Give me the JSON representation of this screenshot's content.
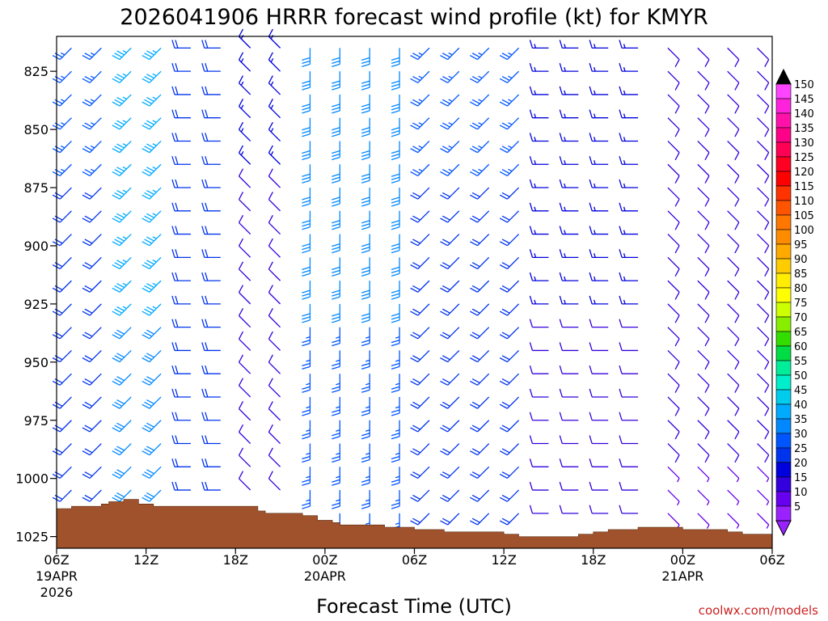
{
  "chart_data": {
    "type": "wind-profile-barbs",
    "title": "2026041906 HRRR forecast wind profile (kt) for KMYR",
    "xlabel": "Forecast Time (UTC)",
    "credit": "coolwx.com/models",
    "units": "kt",
    "x_range_hours": [
      0,
      48
    ],
    "y_range_hpa": [
      1030,
      810
    ],
    "y_ticks": [
      "825",
      "850",
      "875",
      "900",
      "925",
      "950",
      "975",
      "1000",
      "1025"
    ],
    "x_ticks": [
      {
        "hour": 0,
        "label": "06Z",
        "date": "19APR",
        "year": "2026"
      },
      {
        "hour": 6,
        "label": "12Z",
        "date": "",
        "year": ""
      },
      {
        "hour": 12,
        "label": "18Z",
        "date": "",
        "year": ""
      },
      {
        "hour": 18,
        "label": "00Z",
        "date": "20APR",
        "year": ""
      },
      {
        "hour": 24,
        "label": "06Z",
        "date": "",
        "year": ""
      },
      {
        "hour": 30,
        "label": "12Z",
        "date": "",
        "year": ""
      },
      {
        "hour": 36,
        "label": "18Z",
        "date": "",
        "year": ""
      },
      {
        "hour": 42,
        "label": "00Z",
        "date": "21APR",
        "year": ""
      },
      {
        "hour": 48,
        "label": "06Z",
        "date": "",
        "year": ""
      }
    ],
    "colorbar_labels": [
      "150",
      "145",
      "140",
      "135",
      "130",
      "125",
      "120",
      "115",
      "110",
      "105",
      "100",
      "95",
      "90",
      "85",
      "80",
      "75",
      "70",
      "65",
      "60",
      "55",
      "50",
      "45",
      "40",
      "35",
      "30",
      "25",
      "20",
      "15",
      "10",
      "5"
    ],
    "colorbar_colors": [
      "#ff44ff",
      "#ff22dd",
      "#ff11aa",
      "#ff0088",
      "#ff0055",
      "#ff0022",
      "#ff0000",
      "#ff3300",
      "#ff5500",
      "#ff7700",
      "#ff8c00",
      "#ffaa00",
      "#ffcc00",
      "#ffee00",
      "#ffff00",
      "#ccff00",
      "#88ee00",
      "#33dd00",
      "#00dd44",
      "#00ee99",
      "#00eecc",
      "#00ccee",
      "#00aaff",
      "#0088ff",
      "#0055ff",
      "#0033ee",
      "#0000dd",
      "#3300dd",
      "#6600ee",
      "#9922ff"
    ],
    "barb_levels_hpa": [
      815,
      825,
      835,
      845,
      855,
      865,
      875,
      885,
      895,
      905,
      915,
      925,
      935,
      945,
      955,
      965,
      975,
      985,
      995,
      1005,
      1015
    ],
    "barb_hours": [
      1,
      3,
      5,
      7,
      9,
      11,
      13,
      15,
      17,
      19,
      21,
      23,
      25,
      27,
      29,
      31,
      33,
      35,
      37,
      39,
      41,
      43,
      45,
      47
    ],
    "speed_kt_profile_by_hour": [
      {
        "hours": [
          0,
          4
        ],
        "speed_kt": 22,
        "direction": "SW"
      },
      {
        "hours": [
          4,
          8
        ],
        "speed_kt": 33,
        "direction": "SW"
      },
      {
        "hours": [
          8,
          12
        ],
        "speed_kt": 20,
        "direction": "W"
      },
      {
        "hours": [
          12,
          17
        ],
        "speed_kt": 12,
        "direction": "NW"
      },
      {
        "hours": [
          17,
          24
        ],
        "speed_kt": 28,
        "direction": "S"
      },
      {
        "hours": [
          24,
          32
        ],
        "speed_kt": 22,
        "direction": "SW"
      },
      {
        "hours": [
          32,
          40
        ],
        "speed_kt": 13,
        "direction": "W"
      },
      {
        "hours": [
          40,
          48
        ],
        "speed_kt": 9,
        "direction": "SE"
      }
    ],
    "terrain_hpa": [
      {
        "hour": 0,
        "p": 1013
      },
      {
        "hour": 1,
        "p": 1012
      },
      {
        "hour": 3,
        "p": 1011
      },
      {
        "hour": 3.5,
        "p": 1010
      },
      {
        "hour": 4.5,
        "p": 1009
      },
      {
        "hour": 5.5,
        "p": 1011
      },
      {
        "hour": 6.5,
        "p": 1012
      },
      {
        "hour": 12.5,
        "p": 1012
      },
      {
        "hour": 13.5,
        "p": 1014
      },
      {
        "hour": 14,
        "p": 1015
      },
      {
        "hour": 16.5,
        "p": 1016
      },
      {
        "hour": 17.5,
        "p": 1018
      },
      {
        "hour": 18.5,
        "p": 1019
      },
      {
        "hour": 19,
        "p": 1020
      },
      {
        "hour": 21,
        "p": 1020
      },
      {
        "hour": 22,
        "p": 1021
      },
      {
        "hour": 24,
        "p": 1022
      },
      {
        "hour": 26,
        "p": 1023
      },
      {
        "hour": 29,
        "p": 1023
      },
      {
        "hour": 30,
        "p": 1024
      },
      {
        "hour": 31,
        "p": 1025
      },
      {
        "hour": 34,
        "p": 1025
      },
      {
        "hour": 35,
        "p": 1024
      },
      {
        "hour": 36,
        "p": 1023
      },
      {
        "hour": 37,
        "p": 1022
      },
      {
        "hour": 38,
        "p": 1022
      },
      {
        "hour": 39,
        "p": 1021
      },
      {
        "hour": 41,
        "p": 1021
      },
      {
        "hour": 42,
        "p": 1022
      },
      {
        "hour": 45,
        "p": 1023
      },
      {
        "hour": 46,
        "p": 1024
      },
      {
        "hour": 48,
        "p": 1024
      }
    ]
  },
  "colors": {
    "terrain": "#a0522d",
    "credit": "#cc2222"
  }
}
